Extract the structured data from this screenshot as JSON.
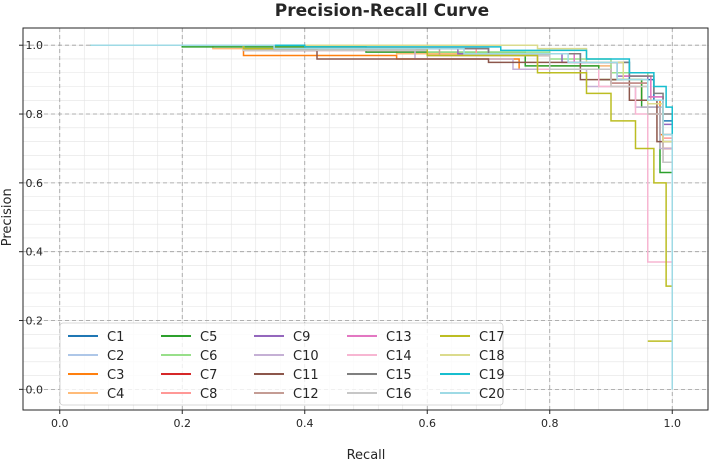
{
  "chart_data": {
    "type": "line",
    "title": "Precision-Recall Curve",
    "xlabel": "Recall",
    "ylabel": "Precision",
    "xlim": [
      0.0,
      1.0
    ],
    "ylim": [
      0.0,
      1.0
    ],
    "xticks": [
      "0.0",
      "0.2",
      "0.4",
      "0.6",
      "0.8",
      "1.0"
    ],
    "yticks": [
      "0.0",
      "0.2",
      "0.4",
      "0.6",
      "0.8",
      "1.0"
    ],
    "grid": true,
    "legend_position": "lower-left",
    "legend_columns": 5,
    "series": [
      {
        "name": "C1",
        "color": "#1f77b4",
        "points": [
          [
            0.05,
            1.0
          ],
          [
            0.4,
            0.99
          ],
          [
            0.7,
            0.975
          ],
          [
            0.85,
            0.95
          ],
          [
            0.93,
            0.9
          ],
          [
            0.97,
            0.84
          ],
          [
            0.985,
            0.78
          ],
          [
            1.0,
            0.0
          ]
        ]
      },
      {
        "name": "C2",
        "color": "#aec7e8",
        "points": [
          [
            0.05,
            1.0
          ],
          [
            0.3,
            0.99
          ],
          [
            0.6,
            0.975
          ],
          [
            0.8,
            0.94
          ],
          [
            0.9,
            0.89
          ],
          [
            0.96,
            0.82
          ],
          [
            0.985,
            0.72
          ],
          [
            1.0,
            0.0
          ]
        ]
      },
      {
        "name": "C3",
        "color": "#ff7f0e",
        "points": [
          [
            0.05,
            1.0
          ],
          [
            0.3,
            0.97
          ],
          [
            0.55,
            0.96
          ],
          [
            0.75,
            0.93
          ],
          [
            0.88,
            0.9
          ],
          [
            0.95,
            0.84
          ],
          [
            0.98,
            0.74
          ],
          [
            1.0,
            0.0
          ]
        ]
      },
      {
        "name": "C4",
        "color": "#ffbb78",
        "points": [
          [
            0.05,
            1.0
          ],
          [
            0.25,
            0.99
          ],
          [
            0.55,
            0.975
          ],
          [
            0.78,
            0.94
          ],
          [
            0.9,
            0.88
          ],
          [
            0.96,
            0.8
          ],
          [
            0.985,
            0.7
          ],
          [
            1.0,
            0.0
          ]
        ]
      },
      {
        "name": "C5",
        "color": "#2ca02c",
        "points": [
          [
            0.05,
            1.0
          ],
          [
            0.2,
            0.995
          ],
          [
            0.5,
            0.98
          ],
          [
            0.76,
            0.94
          ],
          [
            0.88,
            0.9
          ],
          [
            0.95,
            0.82
          ],
          [
            0.98,
            0.63
          ],
          [
            1.0,
            0.0
          ]
        ]
      },
      {
        "name": "C6",
        "color": "#98df8a",
        "points": [
          [
            0.05,
            1.0
          ],
          [
            0.3,
            0.99
          ],
          [
            0.6,
            0.98
          ],
          [
            0.8,
            0.96
          ],
          [
            0.9,
            0.92
          ],
          [
            0.96,
            0.84
          ],
          [
            0.985,
            0.74
          ],
          [
            1.0,
            0.0
          ]
        ]
      },
      {
        "name": "C7",
        "color": "#d62728",
        "points": [
          [
            0.05,
            1.0
          ],
          [
            0.35,
            0.985
          ],
          [
            0.6,
            0.97
          ],
          [
            0.8,
            0.93
          ],
          [
            0.9,
            0.89
          ],
          [
            0.96,
            0.8
          ],
          [
            0.985,
            0.7
          ],
          [
            1.0,
            0.0
          ]
        ]
      },
      {
        "name": "C8",
        "color": "#ff9896",
        "points": [
          [
            0.05,
            1.0
          ],
          [
            0.4,
            0.99
          ],
          [
            0.68,
            0.975
          ],
          [
            0.84,
            0.95
          ],
          [
            0.92,
            0.91
          ],
          [
            0.965,
            0.84
          ],
          [
            0.985,
            0.73
          ],
          [
            1.0,
            0.0
          ]
        ]
      },
      {
        "name": "C9",
        "color": "#9467bd",
        "points": [
          [
            0.05,
            1.0
          ],
          [
            0.35,
            0.99
          ],
          [
            0.65,
            0.975
          ],
          [
            0.82,
            0.95
          ],
          [
            0.91,
            0.91
          ],
          [
            0.96,
            0.85
          ],
          [
            0.985,
            0.77
          ],
          [
            1.0,
            0.0
          ]
        ]
      },
      {
        "name": "C10",
        "color": "#c5b0d5",
        "points": [
          [
            0.05,
            1.0
          ],
          [
            0.3,
            0.985
          ],
          [
            0.58,
            0.96
          ],
          [
            0.74,
            0.93
          ],
          [
            0.86,
            0.88
          ],
          [
            0.94,
            0.82
          ],
          [
            0.98,
            0.7
          ],
          [
            1.0,
            0.0
          ]
        ]
      },
      {
        "name": "C11",
        "color": "#8c564b",
        "points": [
          [
            0.05,
            1.0
          ],
          [
            0.3,
            0.985
          ],
          [
            0.42,
            0.96
          ],
          [
            0.7,
            0.95
          ],
          [
            0.85,
            0.9
          ],
          [
            0.93,
            0.84
          ],
          [
            0.975,
            0.72
          ],
          [
            1.0,
            0.0
          ]
        ]
      },
      {
        "name": "C12",
        "color": "#c49c94",
        "points": [
          [
            0.05,
            1.0
          ],
          [
            0.35,
            0.99
          ],
          [
            0.62,
            0.97
          ],
          [
            0.8,
            0.93
          ],
          [
            0.9,
            0.89
          ],
          [
            0.96,
            0.8
          ],
          [
            0.985,
            0.66
          ],
          [
            1.0,
            0.0
          ]
        ]
      },
      {
        "name": "C13",
        "color": "#e377c2",
        "points": [
          [
            0.05,
            1.0
          ],
          [
            0.4,
            0.99
          ],
          [
            0.7,
            0.975
          ],
          [
            0.84,
            0.95
          ],
          [
            0.92,
            0.91
          ],
          [
            0.965,
            0.85
          ],
          [
            0.985,
            0.74
          ],
          [
            1.0,
            0.0
          ]
        ]
      },
      {
        "name": "C14",
        "color": "#f7b6d2",
        "points": [
          [
            0.05,
            1.0
          ],
          [
            0.3,
            0.99
          ],
          [
            0.6,
            0.97
          ],
          [
            0.78,
            0.93
          ],
          [
            0.88,
            0.88
          ],
          [
            0.94,
            0.8
          ],
          [
            0.96,
            0.37
          ],
          [
            1.0,
            0.0
          ]
        ]
      },
      {
        "name": "C15",
        "color": "#7f7f7f",
        "points": [
          [
            0.05,
            1.0
          ],
          [
            0.4,
            0.99
          ],
          [
            0.7,
            0.975
          ],
          [
            0.85,
            0.95
          ],
          [
            0.93,
            0.91
          ],
          [
            0.97,
            0.86
          ],
          [
            0.985,
            0.8
          ],
          [
            1.0,
            0.0
          ]
        ]
      },
      {
        "name": "C16",
        "color": "#c7c7c7",
        "points": [
          [
            0.05,
            1.0
          ],
          [
            0.3,
            0.985
          ],
          [
            0.6,
            0.97
          ],
          [
            0.8,
            0.93
          ],
          [
            0.9,
            0.88
          ],
          [
            0.96,
            0.8
          ],
          [
            0.985,
            0.66
          ],
          [
            1.0,
            0.0
          ]
        ]
      },
      {
        "name": "C17",
        "color": "#bcbd22",
        "points": [
          [
            0.05,
            1.0
          ],
          [
            0.3,
            0.99
          ],
          [
            0.6,
            0.97
          ],
          [
            0.78,
            0.92
          ],
          [
            0.86,
            0.86
          ],
          [
            0.9,
            0.78
          ],
          [
            0.94,
            0.7
          ],
          [
            0.97,
            0.6
          ],
          [
            0.99,
            0.3
          ],
          [
            1.0,
            0.14
          ],
          [
            0.96,
            0.14
          ]
        ]
      },
      {
        "name": "C18",
        "color": "#dbdb8d",
        "points": [
          [
            0.05,
            1.0
          ],
          [
            0.5,
            1.0
          ],
          [
            0.78,
            0.99
          ],
          [
            0.86,
            0.95
          ],
          [
            0.92,
            0.9
          ],
          [
            0.96,
            0.83
          ],
          [
            0.985,
            0.72
          ],
          [
            1.0,
            0.0
          ]
        ]
      },
      {
        "name": "C19",
        "color": "#17becf",
        "points": [
          [
            0.05,
            1.0
          ],
          [
            0.4,
            0.995
          ],
          [
            0.72,
            0.985
          ],
          [
            0.86,
            0.96
          ],
          [
            0.93,
            0.92
          ],
          [
            0.97,
            0.88
          ],
          [
            0.99,
            0.82
          ],
          [
            1.0,
            0.0
          ]
        ]
      },
      {
        "name": "C20",
        "color": "#9edae5",
        "points": [
          [
            0.05,
            1.0
          ],
          [
            0.35,
            0.99
          ],
          [
            0.66,
            0.975
          ],
          [
            0.83,
            0.95
          ],
          [
            0.91,
            0.9
          ],
          [
            0.96,
            0.84
          ],
          [
            0.985,
            0.74
          ],
          [
            1.0,
            0.0
          ]
        ]
      }
    ]
  }
}
